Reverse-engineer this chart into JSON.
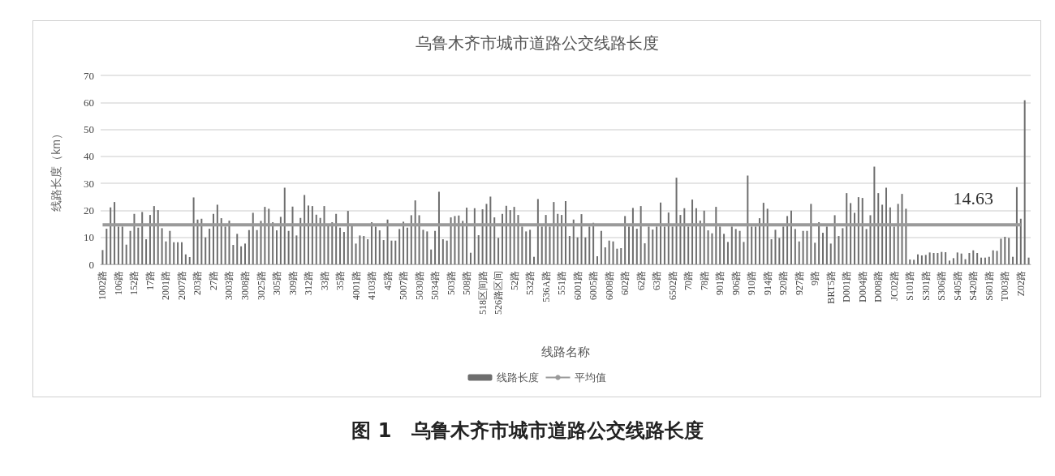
{
  "chart_data": {
    "type": "bar",
    "title": "乌鲁木齐市城市道路公交线路长度",
    "xlabel": "线路名称",
    "ylabel": "线路长度（km）",
    "categories": [
      "1002路",
      null,
      null,
      null,
      "106路",
      null,
      null,
      null,
      "152路",
      null,
      null,
      null,
      "17路",
      null,
      null,
      null,
      "2001路",
      null,
      null,
      null,
      "2007路",
      null,
      null,
      null,
      "203路",
      null,
      null,
      null,
      "27路",
      null,
      null,
      null,
      "3003路",
      null,
      null,
      null,
      "3008路",
      null,
      null,
      null,
      "3025路",
      null,
      null,
      null,
      "305路",
      null,
      null,
      null,
      "309路",
      null,
      null,
      null,
      "312路",
      null,
      null,
      null,
      "33路",
      null,
      null,
      null,
      "35路",
      null,
      null,
      null,
      "4001路",
      null,
      null,
      null,
      "4103路",
      null,
      null,
      null,
      "45路",
      null,
      null,
      null,
      "5007路",
      null,
      null,
      null,
      "5030路",
      null,
      null,
      null,
      "5034路",
      null,
      null,
      null,
      "503路",
      null,
      null,
      null,
      "508路",
      null,
      null,
      null,
      "518区间路",
      null,
      null,
      null,
      "526路区间",
      null,
      null,
      null,
      "52路",
      null,
      null,
      null,
      "532路",
      null,
      null,
      null,
      "536A路",
      null,
      null,
      null,
      "551路",
      null,
      null,
      null,
      "6001路",
      null,
      null,
      null,
      "6005路",
      null,
      null,
      null,
      "6008路",
      null,
      null,
      null,
      "602路",
      null,
      null,
      null,
      "62路",
      null,
      null,
      null,
      "63路",
      null,
      null,
      null,
      "6502路",
      null,
      null,
      null,
      "70路",
      null,
      null,
      null,
      "78路",
      null,
      null,
      null,
      "901路",
      null,
      null,
      null,
      "906路",
      null,
      null,
      null,
      "910路",
      null,
      null,
      null,
      "914路",
      null,
      null,
      null,
      "920路",
      null,
      null,
      null,
      "927路",
      null,
      null,
      null,
      "9路",
      null,
      null,
      null,
      "BRT5路",
      null,
      null,
      null,
      "D001路",
      null,
      null,
      null,
      "D004路",
      null,
      null,
      null,
      "D008路",
      null,
      null,
      null,
      "JC02路",
      null,
      null,
      null,
      "S101路",
      null,
      null,
      null,
      "S301路",
      null,
      null,
      null,
      "S306路",
      null,
      null,
      null,
      "S405路",
      null,
      null,
      null,
      "S420路",
      null,
      null,
      null,
      "S601路",
      null,
      null,
      null,
      "T003路",
      null,
      null,
      null,
      "Z02路",
      null,
      null
    ],
    "series": [
      {
        "name": "线路长度",
        "color": "#6e6e6e",
        "values": [
          5.3,
          13.2,
          21.1,
          23.1,
          14,
          14,
          7.3,
          12.4,
          18.7,
          13.6,
          19.4,
          9.3,
          18.3,
          21.6,
          20.1,
          13.4,
          8.5,
          12.4,
          8.2,
          8.2,
          8.2,
          3.7,
          2.7,
          24.8,
          16.6,
          16.9,
          10,
          13.2,
          18.7,
          22.1,
          17.1,
          14,
          16.2,
          7.2,
          11.3,
          6.7,
          7.7,
          12.7,
          19.1,
          12.7,
          16.1,
          21.3,
          20.6,
          15.6,
          12.6,
          17.6,
          28.4,
          12.4,
          21.4,
          10.7,
          17.2,
          25.7,
          21.8,
          21.6,
          18.4,
          17.2,
          21.6,
          15,
          15.6,
          18.7,
          13.6,
          12,
          19.8,
          14.2,
          7.7,
          10.7,
          10.5,
          9.3,
          15.6,
          14,
          12.6,
          9,
          16.6,
          8.8,
          8.8,
          13.1,
          15.8,
          13.6,
          18.2,
          23.7,
          18.2,
          12.8,
          12.2,
          5.5,
          12.4,
          26.9,
          9.3,
          8.8,
          17.4,
          17.9,
          18.1,
          16.1,
          21,
          4.3,
          20.8,
          10.8,
          20.4,
          22.4,
          25.1,
          17.4,
          9.8,
          18.7,
          21.7,
          20.1,
          21.3,
          18.3,
          14,
          12.2,
          12.8,
          2.8,
          24.2,
          14,
          18.3,
          14,
          23.1,
          18.7,
          18.3,
          23.4,
          10.5,
          16.6,
          10,
          18.6,
          10,
          14,
          15.4,
          3,
          12.4,
          6.3,
          8.8,
          8.5,
          5.8,
          6,
          17.9,
          14,
          20.9,
          13.2,
          21.6,
          7.8,
          14,
          12.9,
          14,
          22.9,
          14,
          19.2,
          14,
          32.1,
          18.3,
          20.8,
          14,
          24,
          20.8,
          16.2,
          19.9,
          12.6,
          11.5,
          21.3,
          14,
          11.3,
          8.3,
          14,
          13.1,
          12.4,
          8.3,
          32.9,
          14,
          14,
          17.1,
          22.8,
          20.6,
          9.3,
          12.8,
          9.8,
          14,
          17.9,
          19.9,
          13.1,
          8.5,
          12.4,
          12.4,
          22.4,
          8,
          15.6,
          11.7,
          14,
          7.7,
          18.2,
          10.5,
          13.4,
          26.4,
          22.7,
          19.1,
          24.9,
          24.6,
          13.1,
          18.2,
          36.2,
          26.4,
          22.1,
          28.4,
          21.1,
          14,
          22.4,
          26.1,
          20.6,
          1.8,
          1.7,
          3.7,
          3.3,
          3.5,
          4.4,
          4.2,
          4.2,
          4.6,
          4.5,
          1.4,
          2.3,
          4.4,
          4,
          1.9,
          4.2,
          5.2,
          4.2,
          2.5,
          2.5,
          2.8,
          5.2,
          5,
          9.5,
          10.2,
          9.8,
          2.8,
          28.6,
          16.9,
          60.8,
          2.5
        ]
      },
      {
        "name": "平均值",
        "type": "line",
        "color": "#9a9a9a",
        "x": [
          "1002路",
          "Z02路"
        ],
        "values": [
          14.63,
          14.63
        ]
      }
    ],
    "ylim": [
      0,
      70
    ],
    "yticks": [
      0,
      10,
      20,
      30,
      40,
      50,
      60,
      70
    ],
    "grid": "y",
    "legend": "bottom",
    "marker": "none",
    "annotations": [
      {
        "text": "14.63",
        "x": "S420路",
        "y": 14.63
      },
      "图 1　乌鲁木齐市城市道路公交线路长度"
    ]
  }
}
